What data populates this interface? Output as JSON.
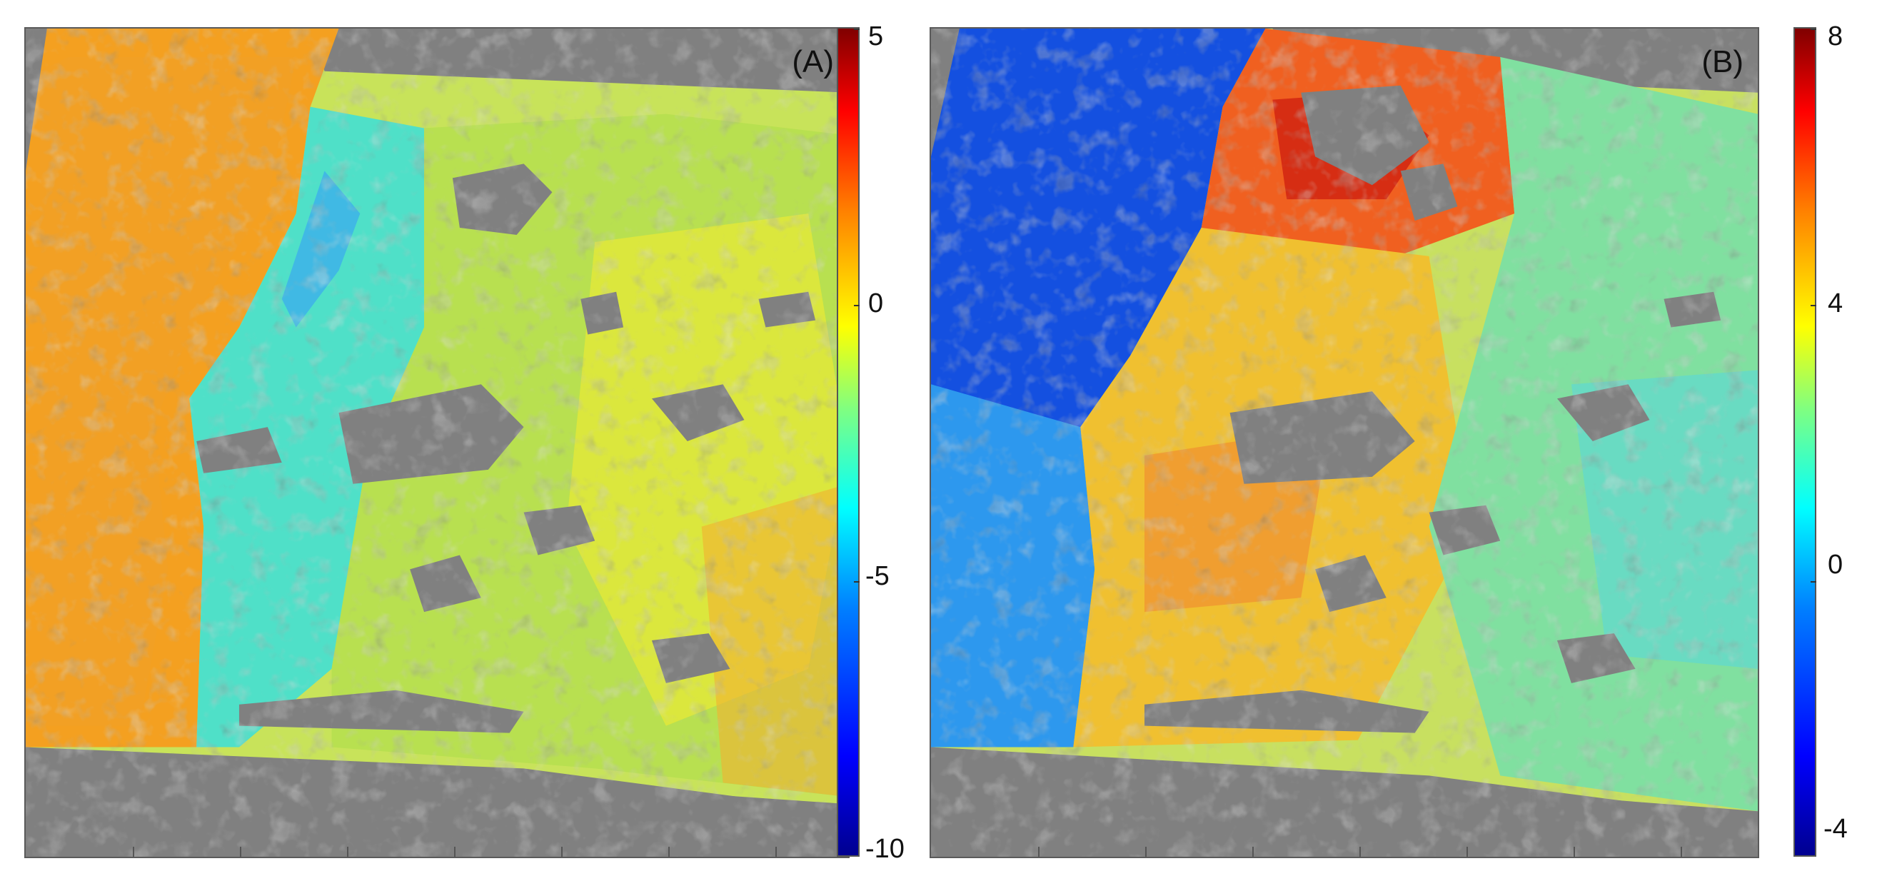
{
  "panels": [
    {
      "label": "(A)",
      "colorbar_ticks": [
        "5",
        "0",
        "-5",
        "-10"
      ]
    },
    {
      "label": "(B)",
      "colorbar_ticks": [
        "8",
        "4",
        "0",
        "-4"
      ]
    }
  ],
  "colors": {
    "mask": "#808080",
    "frame": "#5a5a5a"
  }
}
